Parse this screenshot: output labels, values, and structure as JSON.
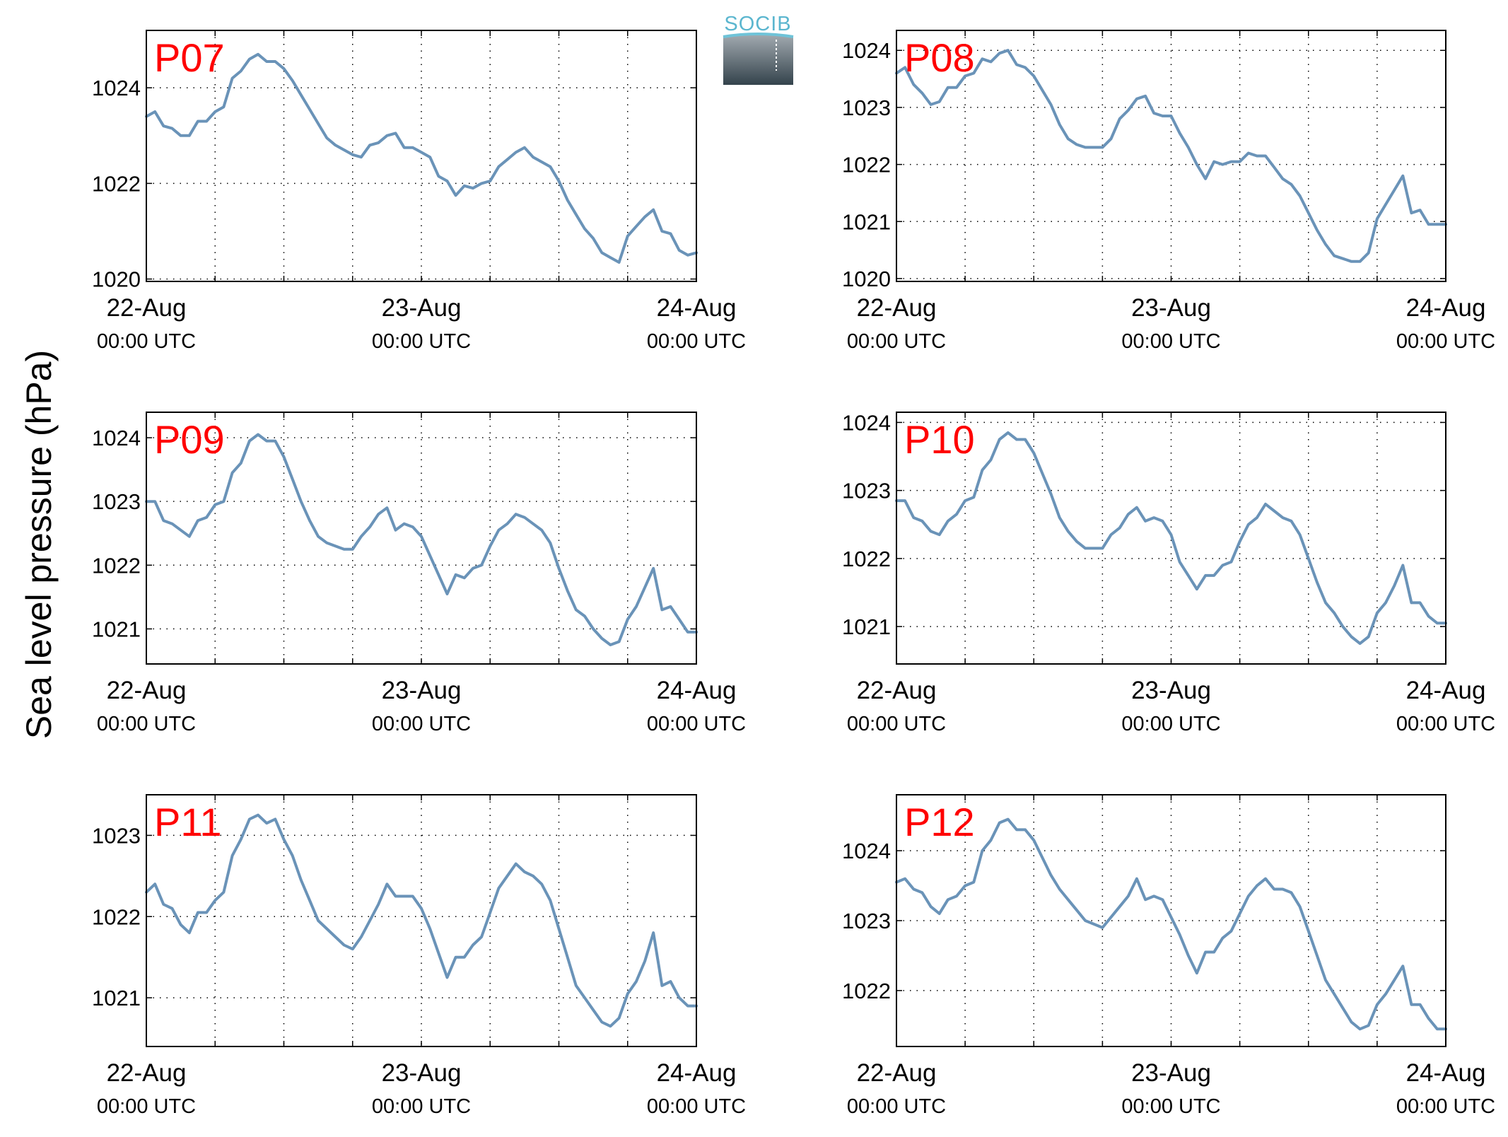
{
  "figure": {
    "ylabel": "Sea level pressure (hPa)",
    "logo_text": "SOCIB",
    "line_color": "#6a93b8",
    "label_color": "#ff0000"
  },
  "chart_data": [
    {
      "type": "line",
      "label": "P07",
      "x_ticks": [
        {
          "date": "22-Aug",
          "time": "00:00 UTC"
        },
        {
          "date": "23-Aug",
          "time": "00:00 UTC"
        },
        {
          "date": "24-Aug",
          "time": "00:00 UTC"
        }
      ],
      "xlim": [
        0,
        48
      ],
      "ylim": [
        1019.95,
        1025.2
      ],
      "y_ticks": [
        1020,
        1022,
        1024
      ],
      "grid": true,
      "series": [
        {
          "x": [
            0,
            0.75,
            1.5,
            2.25,
            3,
            3.75,
            4.5,
            5.25,
            6,
            6.75,
            7.5,
            8.25,
            9,
            9.75,
            10.5,
            11.25,
            12,
            12.75,
            13.5,
            14.25,
            15,
            15.75,
            16.5,
            17.25,
            18,
            18.75,
            19.5,
            20.25,
            21,
            21.75,
            22.5,
            23.25,
            24,
            24.75,
            25.5,
            26.25,
            27,
            27.75,
            28.5,
            29.25,
            30,
            30.75,
            31.5,
            32.25,
            33,
            33.75,
            34.5,
            35.25,
            36,
            36.75,
            37.5,
            38.25,
            39,
            39.75,
            40.5,
            41.25,
            42,
            42.75,
            43.5,
            44.25,
            45,
            45.75,
            46.5,
            47.25,
            48
          ],
          "y": [
            1023.4,
            1023.5,
            1023.2,
            1023.15,
            1023.0,
            1023.0,
            1023.3,
            1023.3,
            1023.5,
            1023.6,
            1024.2,
            1024.35,
            1024.6,
            1024.7,
            1024.55,
            1024.55,
            1024.4,
            1024.15,
            1023.85,
            1023.55,
            1023.25,
            1022.95,
            1022.8,
            1022.7,
            1022.6,
            1022.55,
            1022.8,
            1022.85,
            1023.0,
            1023.05,
            1022.75,
            1022.75,
            1022.65,
            1022.55,
            1022.15,
            1022.05,
            1021.75,
            1021.95,
            1021.9,
            1022.0,
            1022.05,
            1022.35,
            1022.5,
            1022.65,
            1022.75,
            1022.55,
            1022.45,
            1022.35,
            1022.05,
            1021.65,
            1021.35,
            1021.05,
            1020.85,
            1020.55,
            1020.45,
            1020.35,
            1020.9,
            1021.1,
            1021.3,
            1021.45,
            1021.0,
            1020.95,
            1020.6,
            1020.5,
            1020.55
          ]
        }
      ]
    },
    {
      "type": "line",
      "label": "P08",
      "x_ticks": [
        {
          "date": "22-Aug",
          "time": "00:00 UTC"
        },
        {
          "date": "23-Aug",
          "time": "00:00 UTC"
        },
        {
          "date": "24-Aug",
          "time": "00:00 UTC"
        }
      ],
      "xlim": [
        0,
        48
      ],
      "ylim": [
        1019.95,
        1024.35
      ],
      "y_ticks": [
        1020,
        1021,
        1022,
        1023,
        1024
      ],
      "grid": true,
      "series": [
        {
          "x": [
            0,
            0.75,
            1.5,
            2.25,
            3,
            3.75,
            4.5,
            5.25,
            6,
            6.75,
            7.5,
            8.25,
            9,
            9.75,
            10.5,
            11.25,
            12,
            12.75,
            13.5,
            14.25,
            15,
            15.75,
            16.5,
            17.25,
            18,
            18.75,
            19.5,
            20.25,
            21,
            21.75,
            22.5,
            23.25,
            24,
            24.75,
            25.5,
            26.25,
            27,
            27.75,
            28.5,
            29.25,
            30,
            30.75,
            31.5,
            32.25,
            33,
            33.75,
            34.5,
            35.25,
            36,
            36.75,
            37.5,
            38.25,
            39,
            39.75,
            40.5,
            41.25,
            42,
            42.75,
            43.5,
            44.25,
            45,
            45.75,
            46.5,
            47.25,
            48
          ],
          "y": [
            1023.6,
            1023.7,
            1023.4,
            1023.25,
            1023.05,
            1023.1,
            1023.35,
            1023.35,
            1023.55,
            1023.6,
            1023.85,
            1023.8,
            1023.95,
            1024.0,
            1023.75,
            1023.7,
            1023.55,
            1023.3,
            1023.05,
            1022.7,
            1022.45,
            1022.35,
            1022.3,
            1022.3,
            1022.3,
            1022.45,
            1022.8,
            1022.95,
            1023.15,
            1023.2,
            1022.9,
            1022.85,
            1022.85,
            1022.55,
            1022.3,
            1022.0,
            1021.75,
            1022.05,
            1022.0,
            1022.05,
            1022.05,
            1022.2,
            1022.15,
            1022.15,
            1021.95,
            1021.75,
            1021.65,
            1021.45,
            1021.15,
            1020.85,
            1020.6,
            1020.4,
            1020.35,
            1020.3,
            1020.3,
            1020.45,
            1021.05,
            1021.3,
            1021.55,
            1021.8,
            1021.15,
            1021.2,
            1020.95,
            1020.95,
            1020.95
          ]
        }
      ]
    },
    {
      "type": "line",
      "label": "P09",
      "x_ticks": [
        {
          "date": "22-Aug",
          "time": "00:00 UTC"
        },
        {
          "date": "23-Aug",
          "time": "00:00 UTC"
        },
        {
          "date": "24-Aug",
          "time": "00:00 UTC"
        }
      ],
      "xlim": [
        0,
        48
      ],
      "ylim": [
        1020.45,
        1024.4
      ],
      "y_ticks": [
        1021,
        1022,
        1023,
        1024
      ],
      "grid": true,
      "series": [
        {
          "x": [
            0,
            0.75,
            1.5,
            2.25,
            3,
            3.75,
            4.5,
            5.25,
            6,
            6.75,
            7.5,
            8.25,
            9,
            9.75,
            10.5,
            11.25,
            12,
            12.75,
            13.5,
            14.25,
            15,
            15.75,
            16.5,
            17.25,
            18,
            18.75,
            19.5,
            20.25,
            21,
            21.75,
            22.5,
            23.25,
            24,
            24.75,
            25.5,
            26.25,
            27,
            27.75,
            28.5,
            29.25,
            30,
            30.75,
            31.5,
            32.25,
            33,
            33.75,
            34.5,
            35.25,
            36,
            36.75,
            37.5,
            38.25,
            39,
            39.75,
            40.5,
            41.25,
            42,
            42.75,
            43.5,
            44.25,
            45,
            45.75,
            46.5,
            47.25,
            48
          ],
          "y": [
            1023.0,
            1023.0,
            1022.7,
            1022.65,
            1022.55,
            1022.45,
            1022.7,
            1022.75,
            1022.95,
            1023.0,
            1023.45,
            1023.6,
            1023.95,
            1024.05,
            1023.95,
            1023.95,
            1023.7,
            1023.35,
            1023.0,
            1022.7,
            1022.45,
            1022.35,
            1022.3,
            1022.25,
            1022.25,
            1022.45,
            1022.6,
            1022.8,
            1022.9,
            1022.55,
            1022.65,
            1022.6,
            1022.45,
            1022.15,
            1021.85,
            1021.55,
            1021.85,
            1021.8,
            1021.95,
            1022.0,
            1022.3,
            1022.55,
            1022.65,
            1022.8,
            1022.75,
            1022.65,
            1022.55,
            1022.35,
            1021.95,
            1021.6,
            1021.3,
            1021.2,
            1021.0,
            1020.85,
            1020.75,
            1020.8,
            1021.15,
            1021.35,
            1021.65,
            1021.95,
            1021.3,
            1021.35,
            1021.15,
            1020.95,
            1020.95
          ]
        }
      ]
    },
    {
      "type": "line",
      "label": "P10",
      "x_ticks": [
        {
          "date": "22-Aug",
          "time": "00:00 UTC"
        },
        {
          "date": "23-Aug",
          "time": "00:00 UTC"
        },
        {
          "date": "24-Aug",
          "time": "00:00 UTC"
        }
      ],
      "xlim": [
        0,
        48
      ],
      "ylim": [
        1020.45,
        1024.15
      ],
      "y_ticks": [
        1021,
        1022,
        1023,
        1024
      ],
      "grid": true,
      "series": [
        {
          "x": [
            0,
            0.75,
            1.5,
            2.25,
            3,
            3.75,
            4.5,
            5.25,
            6,
            6.75,
            7.5,
            8.25,
            9,
            9.75,
            10.5,
            11.25,
            12,
            12.75,
            13.5,
            14.25,
            15,
            15.75,
            16.5,
            17.25,
            18,
            18.75,
            19.5,
            20.25,
            21,
            21.75,
            22.5,
            23.25,
            24,
            24.75,
            25.5,
            26.25,
            27,
            27.75,
            28.5,
            29.25,
            30,
            30.75,
            31.5,
            32.25,
            33,
            33.75,
            34.5,
            35.25,
            36,
            36.75,
            37.5,
            38.25,
            39,
            39.75,
            40.5,
            41.25,
            42,
            42.75,
            43.5,
            44.25,
            45,
            45.75,
            46.5,
            47.25,
            48
          ],
          "y": [
            1022.85,
            1022.85,
            1022.6,
            1022.55,
            1022.4,
            1022.35,
            1022.55,
            1022.65,
            1022.85,
            1022.9,
            1023.3,
            1023.45,
            1023.75,
            1023.85,
            1023.75,
            1023.75,
            1023.55,
            1023.25,
            1022.95,
            1022.6,
            1022.4,
            1022.25,
            1022.15,
            1022.15,
            1022.15,
            1022.35,
            1022.45,
            1022.65,
            1022.75,
            1022.55,
            1022.6,
            1022.55,
            1022.35,
            1021.95,
            1021.75,
            1021.55,
            1021.75,
            1021.75,
            1021.9,
            1021.95,
            1022.25,
            1022.5,
            1022.6,
            1022.8,
            1022.7,
            1022.6,
            1022.55,
            1022.35,
            1022.0,
            1021.65,
            1021.35,
            1021.2,
            1021.0,
            1020.85,
            1020.75,
            1020.85,
            1021.2,
            1021.35,
            1021.6,
            1021.9,
            1021.35,
            1021.35,
            1021.15,
            1021.05,
            1021.05
          ]
        }
      ]
    },
    {
      "type": "line",
      "label": "P11",
      "x_ticks": [
        {
          "date": "22-Aug",
          "time": "00:00 UTC"
        },
        {
          "date": "23-Aug",
          "time": "00:00 UTC"
        },
        {
          "date": "24-Aug",
          "time": "00:00 UTC"
        }
      ],
      "xlim": [
        0,
        48
      ],
      "ylim": [
        1020.4,
        1023.5
      ],
      "y_ticks": [
        1021,
        1022,
        1023
      ],
      "grid": true,
      "series": [
        {
          "x": [
            0,
            0.75,
            1.5,
            2.25,
            3,
            3.75,
            4.5,
            5.25,
            6,
            6.75,
            7.5,
            8.25,
            9,
            9.75,
            10.5,
            11.25,
            12,
            12.75,
            13.5,
            14.25,
            15,
            15.75,
            16.5,
            17.25,
            18,
            18.75,
            19.5,
            20.25,
            21,
            21.75,
            22.5,
            23.25,
            24,
            24.75,
            25.5,
            26.25,
            27,
            27.75,
            28.5,
            29.25,
            30,
            30.75,
            31.5,
            32.25,
            33,
            33.75,
            34.5,
            35.25,
            36,
            36.75,
            37.5,
            38.25,
            39,
            39.75,
            40.5,
            41.25,
            42,
            42.75,
            43.5,
            44.25,
            45,
            45.75,
            46.5,
            47.25,
            48
          ],
          "y": [
            1022.3,
            1022.4,
            1022.15,
            1022.1,
            1021.9,
            1021.8,
            1022.05,
            1022.05,
            1022.2,
            1022.3,
            1022.75,
            1022.95,
            1023.2,
            1023.25,
            1023.15,
            1023.2,
            1022.95,
            1022.75,
            1022.45,
            1022.2,
            1021.95,
            1021.85,
            1021.75,
            1021.65,
            1021.6,
            1021.75,
            1021.95,
            1022.15,
            1022.4,
            1022.25,
            1022.25,
            1022.25,
            1022.1,
            1021.85,
            1021.55,
            1021.25,
            1021.5,
            1021.5,
            1021.65,
            1021.75,
            1022.05,
            1022.35,
            1022.5,
            1022.65,
            1022.55,
            1022.5,
            1022.4,
            1022.2,
            1021.85,
            1021.5,
            1021.15,
            1021.0,
            1020.85,
            1020.7,
            1020.65,
            1020.75,
            1021.05,
            1021.2,
            1021.45,
            1021.8,
            1021.15,
            1021.2,
            1021.0,
            1020.9,
            1020.9
          ]
        }
      ]
    },
    {
      "type": "line",
      "label": "P12",
      "x_ticks": [
        {
          "date": "22-Aug",
          "time": "00:00 UTC"
        },
        {
          "date": "23-Aug",
          "time": "00:00 UTC"
        },
        {
          "date": "24-Aug",
          "time": "00:00 UTC"
        }
      ],
      "xlim": [
        0,
        48
      ],
      "ylim": [
        1021.2,
        1024.8
      ],
      "y_ticks": [
        1022,
        1023,
        1024
      ],
      "grid": true,
      "series": [
        {
          "x": [
            0,
            0.75,
            1.5,
            2.25,
            3,
            3.75,
            4.5,
            5.25,
            6,
            6.75,
            7.5,
            8.25,
            9,
            9.75,
            10.5,
            11.25,
            12,
            12.75,
            13.5,
            14.25,
            15,
            15.75,
            16.5,
            17.25,
            18,
            18.75,
            19.5,
            20.25,
            21,
            21.75,
            22.5,
            23.25,
            24,
            24.75,
            25.5,
            26.25,
            27,
            27.75,
            28.5,
            29.25,
            30,
            30.75,
            31.5,
            32.25,
            33,
            33.75,
            34.5,
            35.25,
            36,
            36.75,
            37.5,
            38.25,
            39,
            39.75,
            40.5,
            41.25,
            42,
            42.75,
            43.5,
            44.25,
            45,
            45.75,
            46.5,
            47.25,
            48
          ],
          "y": [
            1023.55,
            1023.6,
            1023.45,
            1023.4,
            1023.2,
            1023.1,
            1023.3,
            1023.35,
            1023.5,
            1023.55,
            1024.0,
            1024.15,
            1024.4,
            1024.45,
            1024.3,
            1024.3,
            1024.15,
            1023.9,
            1023.65,
            1023.45,
            1023.3,
            1023.15,
            1023.0,
            1022.95,
            1022.9,
            1023.05,
            1023.2,
            1023.35,
            1023.6,
            1023.3,
            1023.35,
            1023.3,
            1023.05,
            1022.8,
            1022.5,
            1022.25,
            1022.55,
            1022.55,
            1022.75,
            1022.85,
            1023.1,
            1023.35,
            1023.5,
            1023.6,
            1023.45,
            1023.45,
            1023.4,
            1023.2,
            1022.85,
            1022.5,
            1022.15,
            1021.95,
            1021.75,
            1021.55,
            1021.45,
            1021.5,
            1021.8,
            1021.95,
            1022.15,
            1022.35,
            1021.8,
            1021.8,
            1021.6,
            1021.45,
            1021.45
          ]
        }
      ]
    }
  ]
}
